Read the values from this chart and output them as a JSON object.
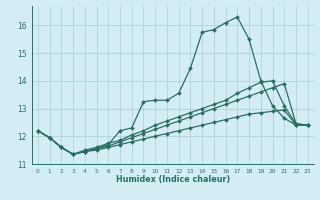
{
  "xlabel": "Humidex (Indice chaleur)",
  "x": [
    0,
    1,
    2,
    3,
    4,
    5,
    6,
    7,
    8,
    9,
    10,
    11,
    12,
    13,
    14,
    15,
    16,
    17,
    18,
    19,
    20,
    21,
    22,
    23
  ],
  "line_main": [
    12.2,
    11.95,
    11.6,
    11.35,
    11.45,
    11.55,
    11.7,
    12.2,
    12.3,
    13.25,
    13.3,
    13.3,
    13.55,
    14.45,
    15.75,
    15.85,
    16.1,
    16.3,
    15.5,
    14.0,
    13.1,
    12.65,
    12.4,
    12.4
  ],
  "line_upper": [
    12.2,
    11.95,
    11.6,
    11.35,
    11.5,
    11.6,
    11.75,
    11.85,
    12.05,
    12.2,
    12.4,
    12.55,
    12.7,
    12.85,
    13.0,
    13.15,
    13.3,
    13.55,
    13.75,
    13.95,
    14.0,
    13.1,
    12.45,
    12.4
  ],
  "line_mid": [
    12.2,
    11.95,
    11.6,
    11.35,
    11.45,
    11.55,
    11.65,
    11.8,
    11.95,
    12.1,
    12.25,
    12.4,
    12.55,
    12.7,
    12.85,
    13.0,
    13.15,
    13.3,
    13.45,
    13.6,
    13.75,
    13.9,
    12.45,
    12.4
  ],
  "line_lower": [
    12.2,
    11.95,
    11.6,
    11.35,
    11.45,
    11.5,
    11.6,
    11.7,
    11.8,
    11.9,
    12.0,
    12.1,
    12.2,
    12.3,
    12.4,
    12.5,
    12.6,
    12.7,
    12.8,
    12.85,
    12.9,
    12.95,
    12.4,
    12.4
  ],
  "bg_color": "#d4edf4",
  "line_color": "#2a6e63",
  "grid_color": "#aacdd8",
  "ylim": [
    11.0,
    16.7
  ],
  "xlim": [
    -0.5,
    23.5
  ],
  "yticks": [
    11,
    12,
    13,
    14,
    15,
    16
  ],
  "xticks": [
    0,
    1,
    2,
    3,
    4,
    5,
    6,
    7,
    8,
    9,
    10,
    11,
    12,
    13,
    14,
    15,
    16,
    17,
    18,
    19,
    20,
    21,
    22,
    23
  ]
}
